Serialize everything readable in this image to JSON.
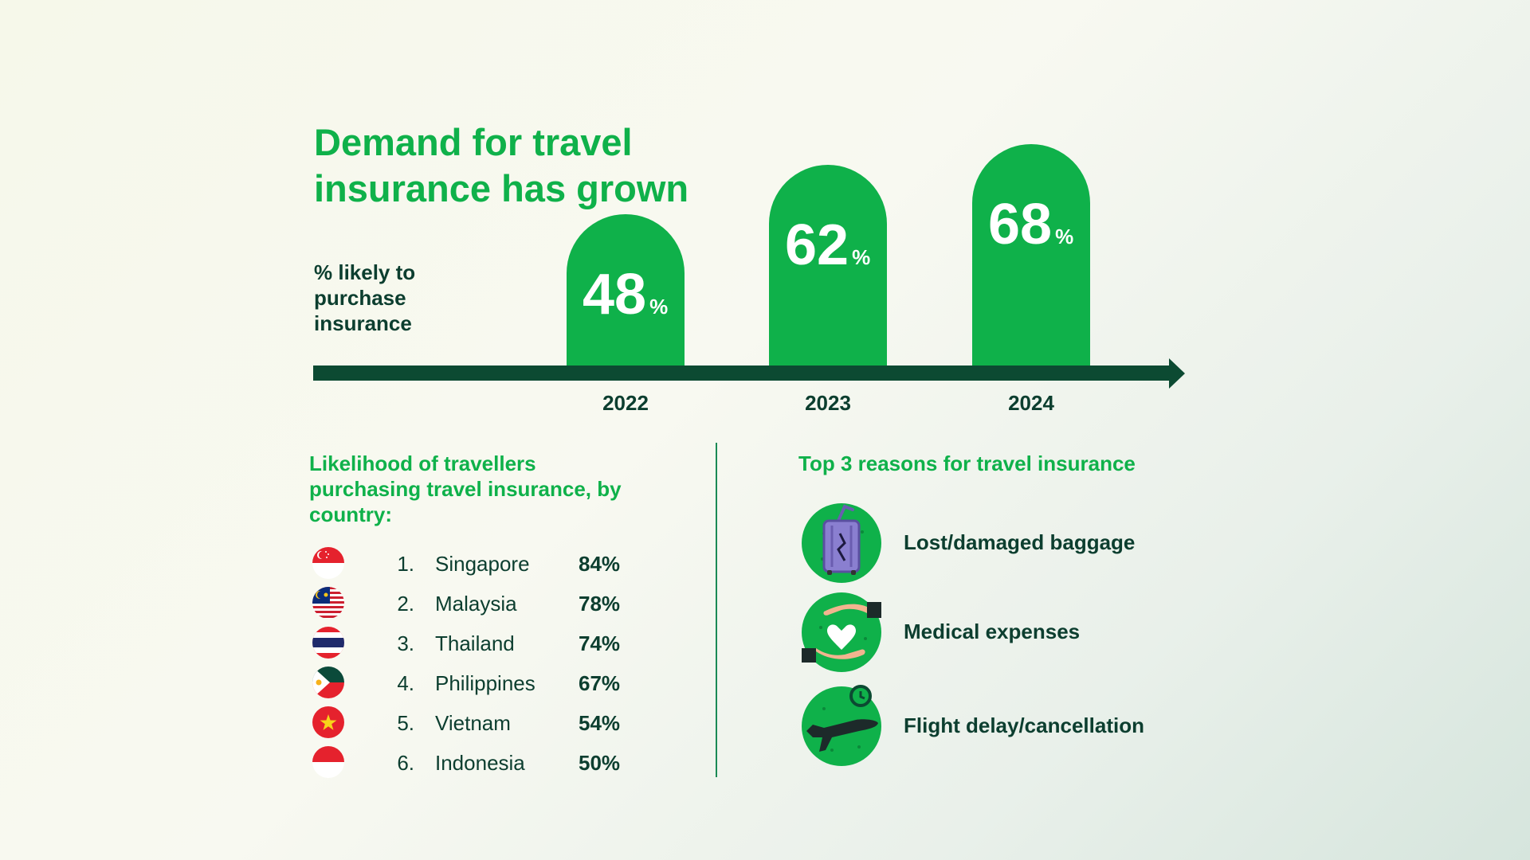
{
  "chart_data": {
    "type": "bar",
    "title": "Demand for travel insurance has grown",
    "ylabel": "% likely to purchase insurance",
    "categories": [
      "2022",
      "2023",
      "2024"
    ],
    "values": [
      48,
      62,
      68
    ],
    "unit": "%"
  },
  "header": {
    "title": "Demand for travel insurance has grown",
    "subtitle": "% likely to purchase insurance"
  },
  "bars": [
    {
      "year": "2022",
      "value": "48",
      "unit": "%"
    },
    {
      "year": "2023",
      "value": "62",
      "unit": "%"
    },
    {
      "year": "2024",
      "value": "68",
      "unit": "%"
    }
  ],
  "countries": {
    "title": "Likelihood of travellers purchasing travel insurance, by country:",
    "items": [
      {
        "rank": "1.",
        "name": "Singapore",
        "value": "84%",
        "flag": "singapore-flag-icon"
      },
      {
        "rank": "2.",
        "name": "Malaysia",
        "value": "78%",
        "flag": "malaysia-flag-icon"
      },
      {
        "rank": "3.",
        "name": "Thailand",
        "value": "74%",
        "flag": "thailand-flag-icon"
      },
      {
        "rank": "4.",
        "name": "Philippines",
        "value": "67%",
        "flag": "philippines-flag-icon"
      },
      {
        "rank": "5.",
        "name": "Vietnam",
        "value": "54%",
        "flag": "vietnam-flag-icon"
      },
      {
        "rank": "6.",
        "name": "Indonesia",
        "value": "50%",
        "flag": "indonesia-flag-icon"
      }
    ]
  },
  "reasons": {
    "title": "Top 3 reasons for travel insurance",
    "items": [
      {
        "label": "Lost/damaged baggage",
        "icon": "baggage-icon"
      },
      {
        "label": "Medical expenses",
        "icon": "heart-hands-icon"
      },
      {
        "label": "Flight delay/cancellation",
        "icon": "airplane-clock-icon"
      }
    ]
  },
  "colors": {
    "brand_green": "#0fb14a",
    "dark_green": "#0c3e2f",
    "axis": "#0c4a32"
  }
}
